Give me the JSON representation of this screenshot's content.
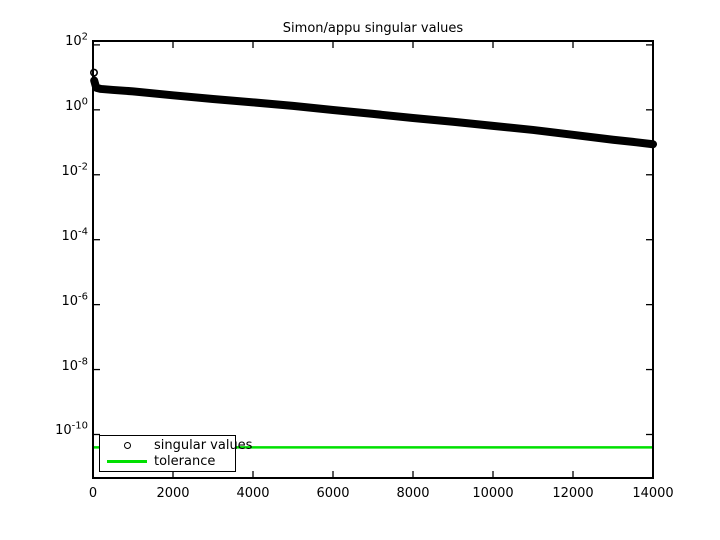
{
  "figure": {
    "background": "#ffffff"
  },
  "chart_data": {
    "type": "line",
    "title": "Simon/appu singular values",
    "xlabel": "",
    "ylabel": "",
    "y_scale": "log",
    "grid": false,
    "x_ticks": [
      0,
      2000,
      4000,
      6000,
      8000,
      10000,
      12000,
      14000
    ],
    "y_tick_base": 10,
    "y_tick_exponents": [
      2,
      0,
      -2,
      -4,
      -6,
      -8,
      -10
    ],
    "xlim": [
      0,
      14000
    ],
    "ylim_log10": [
      -11.34,
      2.12
    ],
    "axis_color": "#000000",
    "legend_position": "southwest",
    "series": [
      {
        "name": "singular values",
        "style": "markers",
        "marker": "o",
        "color": "#000000",
        "x": [
          30,
          80,
          200,
          500,
          1000,
          2000,
          3000,
          4000,
          5000,
          6000,
          7000,
          8000,
          9000,
          10000,
          11000,
          12000,
          13000,
          13500,
          14000
        ],
        "y": [
          8.0,
          4.8,
          4.4,
          4.1,
          3.7,
          2.8,
          2.15,
          1.7,
          1.32,
          0.99,
          0.75,
          0.56,
          0.43,
          0.32,
          0.24,
          0.17,
          0.12,
          0.103,
          0.087
        ],
        "first_point": {
          "x": 25,
          "y": 14
        }
      },
      {
        "name": "tolerance",
        "style": "hline",
        "color": "#00e000",
        "value": 4e-11
      }
    ],
    "legend": [
      {
        "label": "singular values",
        "marker": "circle",
        "color": "#000000"
      },
      {
        "label": "tolerance",
        "marker": "line",
        "color": "#00e000"
      }
    ]
  }
}
